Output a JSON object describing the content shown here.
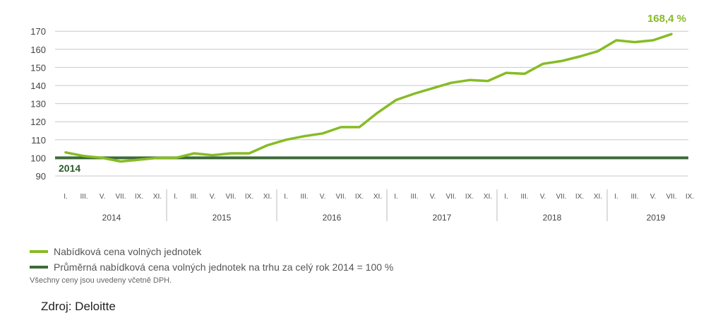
{
  "chart_data": {
    "type": "line",
    "ylim": [
      90,
      170
    ],
    "y_ticks": [
      90,
      100,
      110,
      120,
      130,
      140,
      150,
      160,
      170
    ],
    "month_labels": [
      "I.",
      "III.",
      "V.",
      "VII.",
      "IX.",
      "XI."
    ],
    "month_labels_last_year": [
      "I.",
      "III.",
      "V.",
      "VII.",
      "IX."
    ],
    "years": [
      "2014",
      "2015",
      "2016",
      "2017",
      "2018",
      "2019"
    ],
    "series": [
      {
        "name": "Nabídková cena volných jednotek",
        "color": "#86bc25",
        "values": [
          103,
          101,
          100,
          98,
          99,
          100,
          100,
          102.5,
          101.5,
          102.5,
          102.5,
          107,
          110,
          112,
          113.5,
          117,
          117,
          125,
          132,
          135.5,
          138.5,
          141.5,
          143,
          142.5,
          147,
          146.5,
          152,
          153.5,
          156,
          159,
          165,
          164,
          165,
          168.4
        ]
      },
      {
        "name": "Průměrná nabídková cena volných jednotek na trhu za celý rok 2014 = 100 %",
        "color": "#3e6a3a",
        "values": [
          100
        ]
      }
    ],
    "annotations": {
      "end_value_label": "168,4 %",
      "baseline_label": "2014"
    },
    "grid": true,
    "legend_position": "bottom-left"
  },
  "note": "Všechny ceny jsou uvedeny včetně DPH.",
  "source": "Zdroj: Deloitte"
}
